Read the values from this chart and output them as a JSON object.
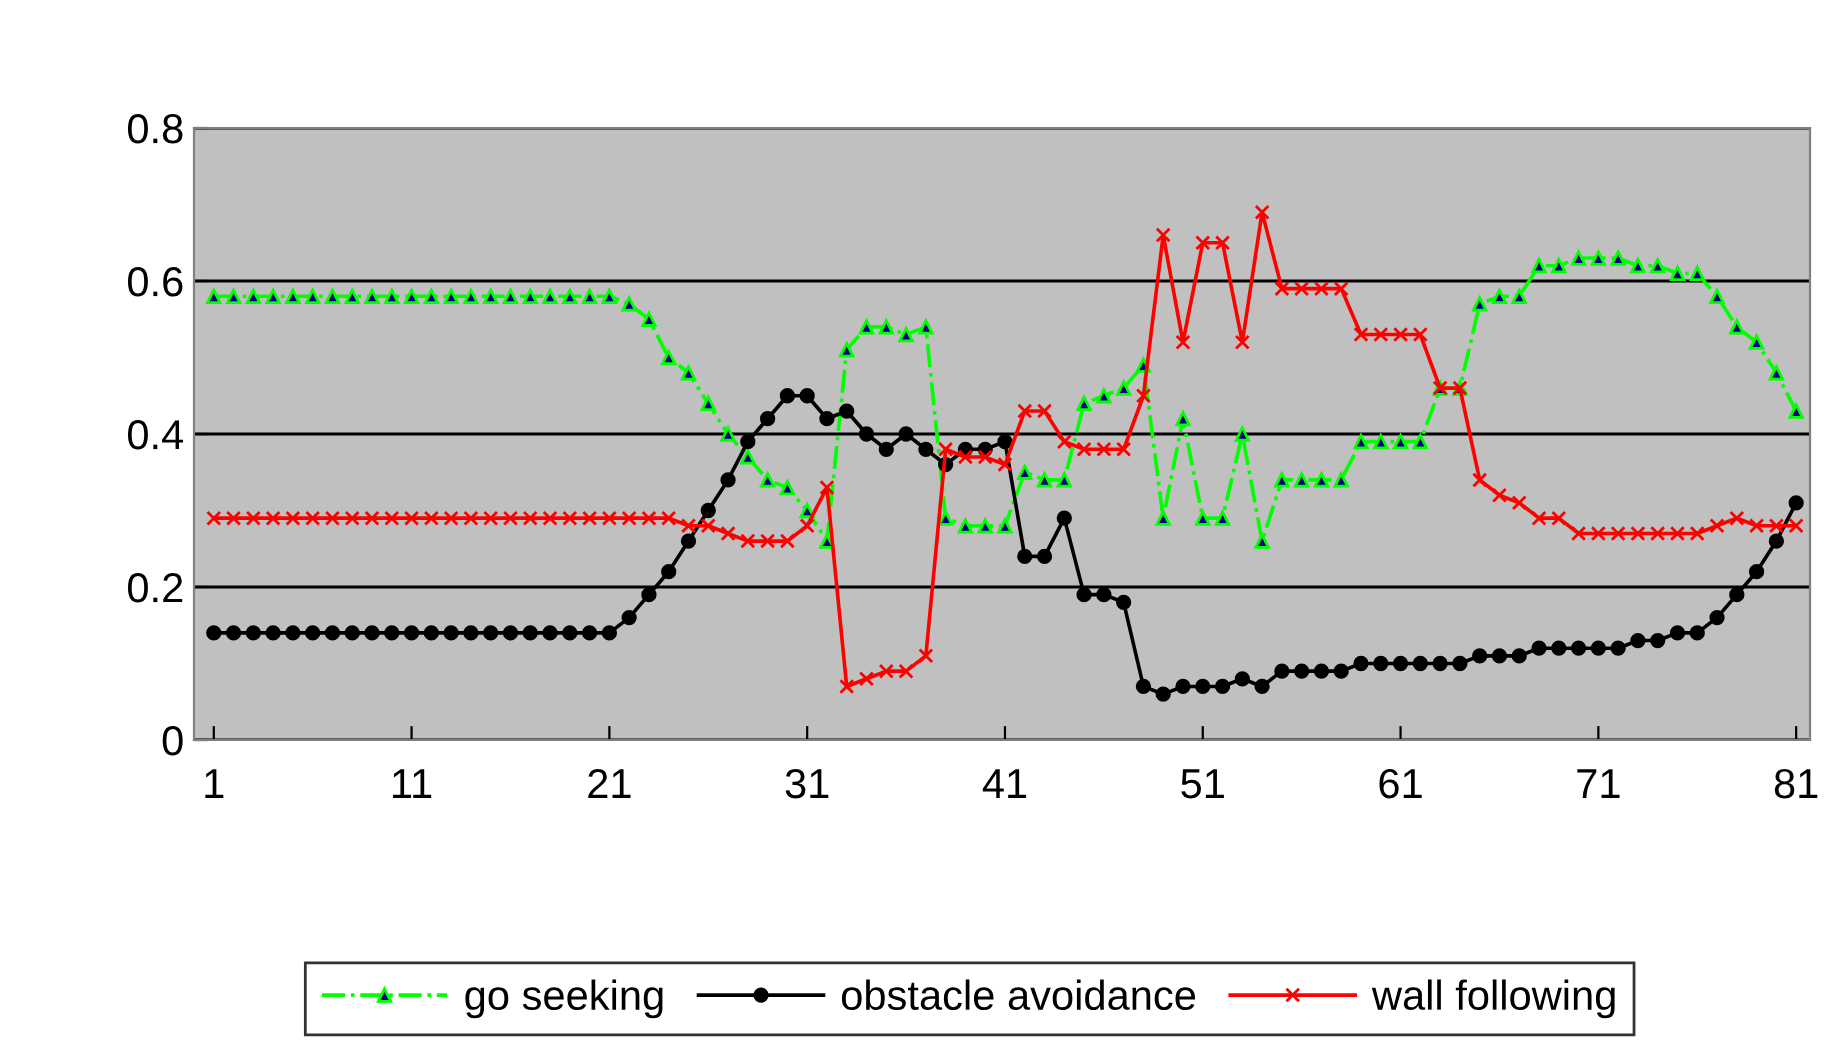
{
  "chart_data": {
    "type": "line",
    "categories": [
      "1",
      null,
      null,
      null,
      null,
      null,
      null,
      null,
      null,
      null,
      "11",
      null,
      null,
      null,
      null,
      null,
      null,
      null,
      null,
      null,
      "21",
      null,
      null,
      null,
      null,
      null,
      null,
      null,
      null,
      null,
      "31",
      null,
      null,
      null,
      null,
      null,
      null,
      null,
      null,
      null,
      "41",
      null,
      null,
      null,
      null,
      null,
      null,
      null,
      null,
      null,
      "51",
      null,
      null,
      null,
      null,
      null,
      null,
      null,
      null,
      null,
      "61",
      null,
      null,
      null,
      null,
      null,
      null,
      null,
      null,
      null,
      "71",
      null,
      null,
      null,
      null,
      null,
      null,
      null,
      null,
      null,
      "81"
    ],
    "series": [
      {
        "name": "go seeking",
        "color": "#00ff00",
        "marker": "triangle",
        "line_style": "dashdot",
        "values": [
          0.58,
          0.58,
          0.58,
          0.58,
          0.58,
          0.58,
          0.58,
          0.58,
          0.58,
          0.58,
          0.58,
          0.58,
          0.58,
          0.58,
          0.58,
          0.58,
          0.58,
          0.58,
          0.58,
          0.58,
          0.58,
          0.57,
          0.55,
          0.5,
          0.48,
          0.44,
          0.4,
          0.37,
          0.34,
          0.33,
          0.3,
          0.26,
          0.51,
          0.54,
          0.54,
          0.53,
          0.54,
          0.29,
          0.28,
          0.28,
          0.28,
          0.35,
          0.34,
          0.34,
          0.44,
          0.45,
          0.46,
          0.49,
          0.29,
          0.42,
          0.29,
          0.29,
          0.4,
          0.26,
          0.34,
          0.34,
          0.34,
          0.34,
          0.39,
          0.39,
          0.39,
          0.39,
          0.46,
          0.46,
          0.57,
          0.58,
          0.58,
          0.62,
          0.62,
          0.63,
          0.63,
          0.63,
          0.62,
          0.62,
          0.61,
          0.61,
          0.58,
          0.54,
          0.52,
          0.48,
          0.43
        ]
      },
      {
        "name": "obstacle avoidance",
        "color": "#000000",
        "marker": "circle",
        "line_style": "solid",
        "values": [
          0.14,
          0.14,
          0.14,
          0.14,
          0.14,
          0.14,
          0.14,
          0.14,
          0.14,
          0.14,
          0.14,
          0.14,
          0.14,
          0.14,
          0.14,
          0.14,
          0.14,
          0.14,
          0.14,
          0.14,
          0.14,
          0.16,
          0.19,
          0.22,
          0.26,
          0.3,
          0.34,
          0.39,
          0.42,
          0.45,
          0.45,
          0.42,
          0.43,
          0.4,
          0.38,
          0.4,
          0.38,
          0.36,
          0.38,
          0.38,
          0.39,
          0.24,
          0.24,
          0.29,
          0.19,
          0.19,
          0.18,
          0.07,
          0.06,
          0.07,
          0.07,
          0.07,
          0.08,
          0.07,
          0.09,
          0.09,
          0.09,
          0.09,
          0.1,
          0.1,
          0.1,
          0.1,
          0.1,
          0.1,
          0.11,
          0.11,
          0.11,
          0.12,
          0.12,
          0.12,
          0.12,
          0.12,
          0.13,
          0.13,
          0.14,
          0.14,
          0.16,
          0.19,
          0.22,
          0.26,
          0.31
        ]
      },
      {
        "name": "wall following",
        "color": "#ff0000",
        "marker": "cross",
        "line_style": "solid",
        "values": [
          0.29,
          0.29,
          0.29,
          0.29,
          0.29,
          0.29,
          0.29,
          0.29,
          0.29,
          0.29,
          0.29,
          0.29,
          0.29,
          0.29,
          0.29,
          0.29,
          0.29,
          0.29,
          0.29,
          0.29,
          0.29,
          0.29,
          0.29,
          0.29,
          0.28,
          0.28,
          0.27,
          0.26,
          0.26,
          0.26,
          0.28,
          0.33,
          0.07,
          0.08,
          0.09,
          0.09,
          0.11,
          0.38,
          0.37,
          0.37,
          0.36,
          0.43,
          0.43,
          0.39,
          0.38,
          0.38,
          0.38,
          0.45,
          0.66,
          0.52,
          0.65,
          0.65,
          0.52,
          0.69,
          0.59,
          0.59,
          0.59,
          0.59,
          0.53,
          0.53,
          0.53,
          0.53,
          0.46,
          0.46,
          0.34,
          0.32,
          0.31,
          0.29,
          0.29,
          0.27,
          0.27,
          0.27,
          0.27,
          0.27,
          0.27,
          0.27,
          0.28,
          0.29,
          0.28,
          0.28,
          0.28
        ]
      }
    ],
    "ylim": [
      0,
      0.8
    ],
    "yticks": [
      0,
      0.2,
      0.4,
      0.6,
      0.8
    ],
    "grid": "y",
    "legend": "bottom"
  }
}
